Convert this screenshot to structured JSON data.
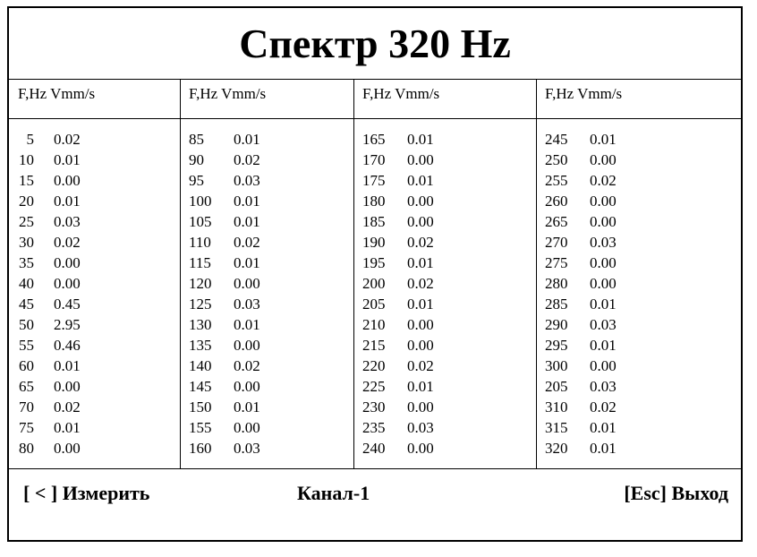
{
  "title": "Спектр 320 Hz",
  "column_header": "F,Hz Vmm/s",
  "columns": [
    [
      [
        "5",
        "0.02"
      ],
      [
        "10",
        "0.01"
      ],
      [
        "15",
        "0.00"
      ],
      [
        "20",
        "0.01"
      ],
      [
        "25",
        "0.03"
      ],
      [
        "30",
        "0.02"
      ],
      [
        "35",
        "0.00"
      ],
      [
        "40",
        "0.00"
      ],
      [
        "45",
        "0.45"
      ],
      [
        "50",
        "2.95"
      ],
      [
        "55",
        "0.46"
      ],
      [
        "60",
        "0.01"
      ],
      [
        "65",
        "0.00"
      ],
      [
        "70",
        "0.02"
      ],
      [
        "75",
        "0.01"
      ],
      [
        "80",
        "0.00"
      ]
    ],
    [
      [
        "85",
        "0.01"
      ],
      [
        "90",
        "0.02"
      ],
      [
        "95",
        "0.03"
      ],
      [
        "100",
        "0.01"
      ],
      [
        "105",
        "0.01"
      ],
      [
        "110",
        "0.02"
      ],
      [
        "115",
        "0.01"
      ],
      [
        "120",
        "0.00"
      ],
      [
        "125",
        "0.03"
      ],
      [
        "130",
        "0.01"
      ],
      [
        "135",
        "0.00"
      ],
      [
        "140",
        "0.02"
      ],
      [
        "145",
        "0.00"
      ],
      [
        "150",
        "0.01"
      ],
      [
        "155",
        "0.00"
      ],
      [
        "160",
        "0.03"
      ]
    ],
    [
      [
        "165",
        "0.01"
      ],
      [
        "170",
        "0.00"
      ],
      [
        "175",
        "0.01"
      ],
      [
        "180",
        "0.00"
      ],
      [
        "185",
        "0.00"
      ],
      [
        "190",
        "0.02"
      ],
      [
        "195",
        "0.01"
      ],
      [
        "200",
        "0.02"
      ],
      [
        "205",
        "0.01"
      ],
      [
        "210",
        "0.00"
      ],
      [
        "215",
        "0.00"
      ],
      [
        "220",
        "0.02"
      ],
      [
        "225",
        "0.01"
      ],
      [
        "230",
        "0.00"
      ],
      [
        "235",
        "0.03"
      ],
      [
        "240",
        "0.00"
      ]
    ],
    [
      [
        "245",
        "0.01"
      ],
      [
        "250",
        "0.00"
      ],
      [
        "255",
        "0.02"
      ],
      [
        "260",
        "0.00"
      ],
      [
        "265",
        "0.00"
      ],
      [
        "270",
        "0.03"
      ],
      [
        "275",
        "0.00"
      ],
      [
        "280",
        "0.00"
      ],
      [
        "285",
        "0.01"
      ],
      [
        "290",
        "0.03"
      ],
      [
        "295",
        "0.01"
      ],
      [
        "300",
        "0.00"
      ],
      [
        "205",
        "0.03"
      ],
      [
        "310",
        "0.02"
      ],
      [
        "315",
        "0.01"
      ],
      [
        "320",
        "0.01"
      ]
    ]
  ],
  "footer": {
    "measure": "[ < ] Измерить",
    "channel": "Канал-1",
    "exit": "[Esc] Выход"
  }
}
